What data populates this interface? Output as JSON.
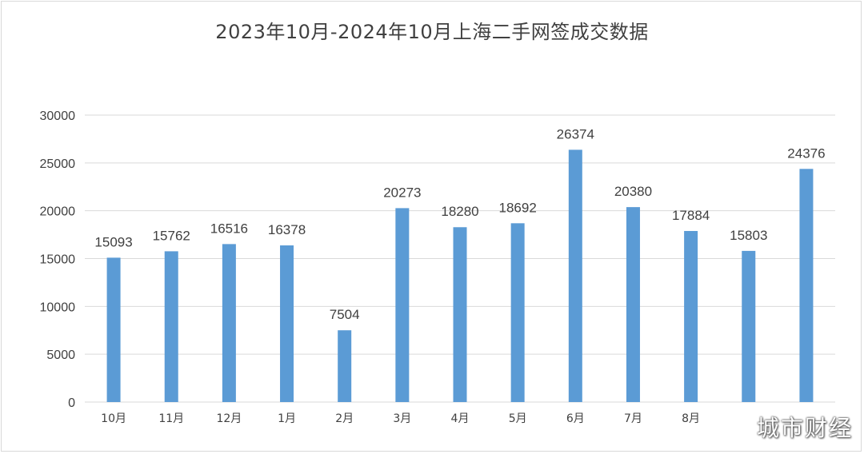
{
  "chart_data": {
    "type": "bar",
    "title": "2023年10月-2024年10月上海二手网签成交数据",
    "xlabel": "",
    "ylabel": "",
    "ylim": [
      0,
      30000
    ],
    "yticks": [
      0,
      5000,
      10000,
      15000,
      20000,
      25000,
      30000
    ],
    "grid": true,
    "categories": [
      "10月",
      "11月",
      "12月",
      "1月",
      "2月",
      "3月",
      "4月",
      "5月",
      "6月",
      "7月",
      "8月",
      "",
      ""
    ],
    "values": [
      15093,
      15762,
      16516,
      16378,
      7504,
      20273,
      18280,
      18692,
      26374,
      20380,
      17884,
      15803,
      24376
    ],
    "bar_color": "#5b9bd5",
    "grid_color": "#d9d9d9"
  },
  "watermark": "城市财经"
}
